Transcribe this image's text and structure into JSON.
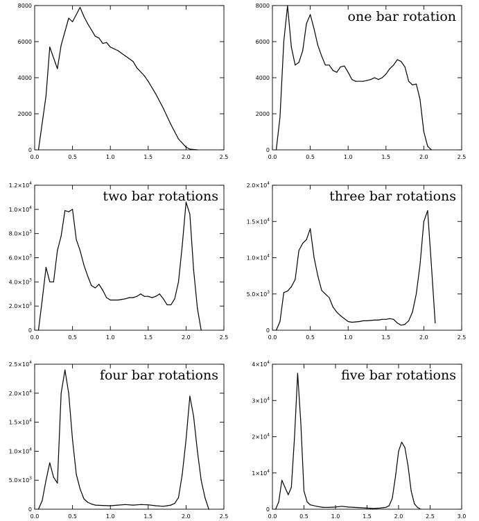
{
  "chart_data": [
    {
      "type": "line",
      "title": "",
      "xlabel": "",
      "ylabel": "",
      "xlim": [
        0,
        2.5
      ],
      "ylim": [
        0,
        8000
      ],
      "grid": false,
      "xticks": [
        0,
        0.5,
        1.0,
        1.5,
        2.0,
        2.5
      ],
      "xtick_labels": [
        "0.0",
        "0.5",
        "1.0",
        "1.5",
        "2.0",
        "2.5"
      ],
      "yticks": [
        0,
        2000,
        4000,
        6000,
        8000
      ],
      "ytick_labels": [
        "0",
        "2000",
        "4000",
        "6000",
        "8000"
      ],
      "x": [
        0.05,
        0.15,
        0.2,
        0.3,
        0.35,
        0.45,
        0.5,
        0.6,
        0.65,
        0.7,
        0.8,
        0.85,
        0.9,
        0.95,
        1.0,
        1.1,
        1.2,
        1.3,
        1.35,
        1.45,
        1.5,
        1.6,
        1.7,
        1.8,
        1.9,
        2.0,
        2.05,
        2.15
      ],
      "y": [
        0,
        3000,
        5700,
        4500,
        5800,
        7300,
        7100,
        7900,
        7400,
        7000,
        6300,
        6200,
        5900,
        5950,
        5700,
        5500,
        5200,
        4900,
        4550,
        4100,
        3800,
        3100,
        2300,
        1400,
        600,
        150,
        40,
        0
      ]
    },
    {
      "type": "line",
      "title": "one bar rotation",
      "xlabel": "",
      "ylabel": "",
      "xlim": [
        0,
        2.5
      ],
      "ylim": [
        0,
        8000
      ],
      "grid": false,
      "xticks": [
        0,
        0.5,
        1.0,
        1.5,
        2.0,
        2.5
      ],
      "xtick_labels": [
        "0.0",
        "0.5",
        "1.0",
        "1.5",
        "2.0",
        "2.5"
      ],
      "yticks": [
        0,
        2000,
        4000,
        6000,
        8000
      ],
      "ytick_labels": [
        "0",
        "2000",
        "4000",
        "6000",
        "8000"
      ],
      "x": [
        0.05,
        0.1,
        0.15,
        0.2,
        0.25,
        0.3,
        0.35,
        0.4,
        0.45,
        0.5,
        0.55,
        0.6,
        0.65,
        0.7,
        0.75,
        0.8,
        0.85,
        0.9,
        0.95,
        1.0,
        1.05,
        1.1,
        1.2,
        1.25,
        1.3,
        1.35,
        1.4,
        1.45,
        1.5,
        1.55,
        1.6,
        1.65,
        1.7,
        1.75,
        1.8,
        1.85,
        1.9,
        1.95,
        2.0,
        2.05,
        2.1
      ],
      "y": [
        0,
        1800,
        6000,
        8000,
        5700,
        4700,
        4850,
        5500,
        7000,
        7500,
        6700,
        5800,
        5200,
        4700,
        4700,
        4400,
        4300,
        4600,
        4650,
        4300,
        3900,
        3800,
        3800,
        3850,
        3900,
        4000,
        3900,
        4000,
        4200,
        4500,
        4700,
        5000,
        4900,
        4600,
        3800,
        3600,
        3650,
        2800,
        1000,
        200,
        0
      ]
    },
    {
      "type": "line",
      "title": "two bar rotations",
      "xlabel": "",
      "ylabel": "",
      "xlim": [
        0,
        2.5
      ],
      "ylim": [
        0,
        12000
      ],
      "grid": false,
      "xticks": [
        0,
        0.5,
        1.0,
        1.5,
        2.0,
        2.5
      ],
      "xtick_labels": [
        "0.0",
        "0.5",
        "1.0",
        "1.5",
        "2.0",
        "2.5"
      ],
      "yticks": [
        0,
        2000,
        4000,
        6000,
        8000,
        10000,
        12000
      ],
      "ytick_labels": [
        "0",
        "2.0×10³",
        "4.0×10³",
        "6.0×10³",
        "8.0×10³",
        "1.0×10⁴",
        "1.2×10⁴"
      ],
      "x": [
        0.05,
        0.1,
        0.15,
        0.2,
        0.25,
        0.3,
        0.35,
        0.4,
        0.45,
        0.5,
        0.55,
        0.6,
        0.65,
        0.7,
        0.75,
        0.8,
        0.85,
        0.9,
        0.95,
        1.0,
        1.05,
        1.1,
        1.15,
        1.2,
        1.25,
        1.3,
        1.35,
        1.4,
        1.45,
        1.5,
        1.55,
        1.6,
        1.65,
        1.7,
        1.75,
        1.8,
        1.85,
        1.9,
        1.95,
        2.0,
        2.05,
        2.1,
        2.15,
        2.2
      ],
      "y": [
        0,
        2500,
        5200,
        4000,
        4000,
        6600,
        7800,
        9900,
        9800,
        10000,
        7500,
        6600,
        5400,
        4500,
        3700,
        3500,
        3800,
        3300,
        2700,
        2500,
        2500,
        2500,
        2550,
        2600,
        2700,
        2700,
        2800,
        3000,
        2800,
        2800,
        2700,
        2800,
        3000,
        2600,
        2100,
        2100,
        2600,
        4000,
        7000,
        10600,
        9600,
        5000,
        1800,
        0
      ]
    },
    {
      "type": "line",
      "title": "three bar rotations",
      "xlabel": "",
      "ylabel": "",
      "xlim": [
        0,
        2.5
      ],
      "ylim": [
        0,
        20000
      ],
      "grid": false,
      "xticks": [
        0,
        0.5,
        1.0,
        1.5,
        2.0,
        2.5
      ],
      "xtick_labels": [
        "0.0",
        "0.5",
        "1.0",
        "1.5",
        "2.0",
        "2.5"
      ],
      "yticks": [
        0,
        5000,
        10000,
        15000,
        20000
      ],
      "ytick_labels": [
        "0",
        "5.0×10³",
        "1.0×10⁴",
        "1.5×10⁴",
        "2.0×10⁴"
      ],
      "x": [
        0.05,
        0.1,
        0.15,
        0.2,
        0.25,
        0.3,
        0.35,
        0.4,
        0.45,
        0.5,
        0.55,
        0.6,
        0.65,
        0.7,
        0.75,
        0.8,
        0.85,
        0.9,
        0.95,
        1.0,
        1.05,
        1.1,
        1.15,
        1.2,
        1.25,
        1.3,
        1.35,
        1.4,
        1.45,
        1.5,
        1.55,
        1.6,
        1.65,
        1.7,
        1.75,
        1.8,
        1.85,
        1.9,
        1.95,
        2.0,
        2.05,
        2.1,
        2.15
      ],
      "y": [
        0,
        1200,
        5200,
        5400,
        6000,
        7000,
        11000,
        12000,
        12500,
        14000,
        10000,
        7500,
        5500,
        5000,
        4500,
        3200,
        2500,
        2000,
        1600,
        1200,
        1100,
        1150,
        1200,
        1300,
        1300,
        1350,
        1400,
        1400,
        1500,
        1500,
        1600,
        1500,
        1000,
        700,
        800,
        1300,
        2500,
        5000,
        9000,
        15000,
        16500,
        9000,
        1000
      ]
    },
    {
      "type": "line",
      "title": "four bar rotations",
      "xlabel": "",
      "ylabel": "",
      "xlim": [
        0,
        2.5
      ],
      "ylim": [
        0,
        25000
      ],
      "grid": false,
      "xticks": [
        0,
        0.5,
        1.0,
        1.5,
        2.0,
        2.5
      ],
      "xtick_labels": [
        "0.0",
        "0.5",
        "1.0",
        "1.5",
        "2.0",
        "2.5"
      ],
      "yticks": [
        0,
        5000,
        10000,
        15000,
        20000,
        25000
      ],
      "ytick_labels": [
        "0",
        "5.0×10³",
        "1.0×10⁴",
        "1.5×10⁴",
        "2.0×10⁴",
        "2.5×10⁴"
      ],
      "x": [
        0.05,
        0.1,
        0.15,
        0.2,
        0.25,
        0.3,
        0.35,
        0.4,
        0.45,
        0.5,
        0.55,
        0.6,
        0.65,
        0.7,
        0.75,
        0.8,
        0.9,
        1.0,
        1.1,
        1.2,
        1.3,
        1.4,
        1.5,
        1.6,
        1.7,
        1.75,
        1.8,
        1.85,
        1.9,
        1.95,
        2.0,
        2.05,
        2.1,
        2.15,
        2.2,
        2.25,
        2.3
      ],
      "y": [
        0,
        1500,
        5000,
        8000,
        5500,
        4500,
        20000,
        24000,
        20000,
        12000,
        6000,
        3500,
        1800,
        1200,
        900,
        700,
        650,
        600,
        700,
        800,
        700,
        800,
        750,
        600,
        500,
        600,
        700,
        1000,
        2000,
        6000,
        12000,
        19500,
        16000,
        10000,
        5000,
        2000,
        0
      ]
    },
    {
      "type": "line",
      "title": "five bar rotations",
      "xlabel": "",
      "ylabel": "",
      "xlim": [
        0,
        3.0
      ],
      "ylim": [
        0,
        40000
      ],
      "grid": false,
      "xticks": [
        0,
        0.5,
        1.0,
        1.5,
        2.0,
        2.5,
        3.0
      ],
      "xtick_labels": [
        "0.0",
        "0.5",
        "1.0",
        "1.5",
        "2.0",
        "2.5",
        "3.0"
      ],
      "yticks": [
        0,
        10000,
        20000,
        30000,
        40000
      ],
      "ytick_labels": [
        "0",
        "1×10⁴",
        "2×10⁴",
        "3×10⁴",
        "4×10⁴"
      ],
      "x": [
        0.05,
        0.1,
        0.15,
        0.2,
        0.25,
        0.3,
        0.35,
        0.4,
        0.45,
        0.5,
        0.55,
        0.6,
        0.7,
        0.8,
        0.9,
        1.0,
        1.1,
        1.2,
        1.3,
        1.4,
        1.5,
        1.6,
        1.7,
        1.8,
        1.85,
        1.9,
        1.95,
        2.0,
        2.05,
        2.1,
        2.15,
        2.2,
        2.25,
        2.3,
        2.35
      ],
      "y": [
        0,
        2000,
        8000,
        6000,
        4000,
        6000,
        20000,
        37500,
        24000,
        5000,
        2000,
        1200,
        800,
        500,
        500,
        600,
        800,
        600,
        500,
        400,
        300,
        200,
        300,
        500,
        1000,
        3000,
        9000,
        16000,
        18500,
        17000,
        12000,
        5000,
        1500,
        500,
        0
      ]
    }
  ]
}
